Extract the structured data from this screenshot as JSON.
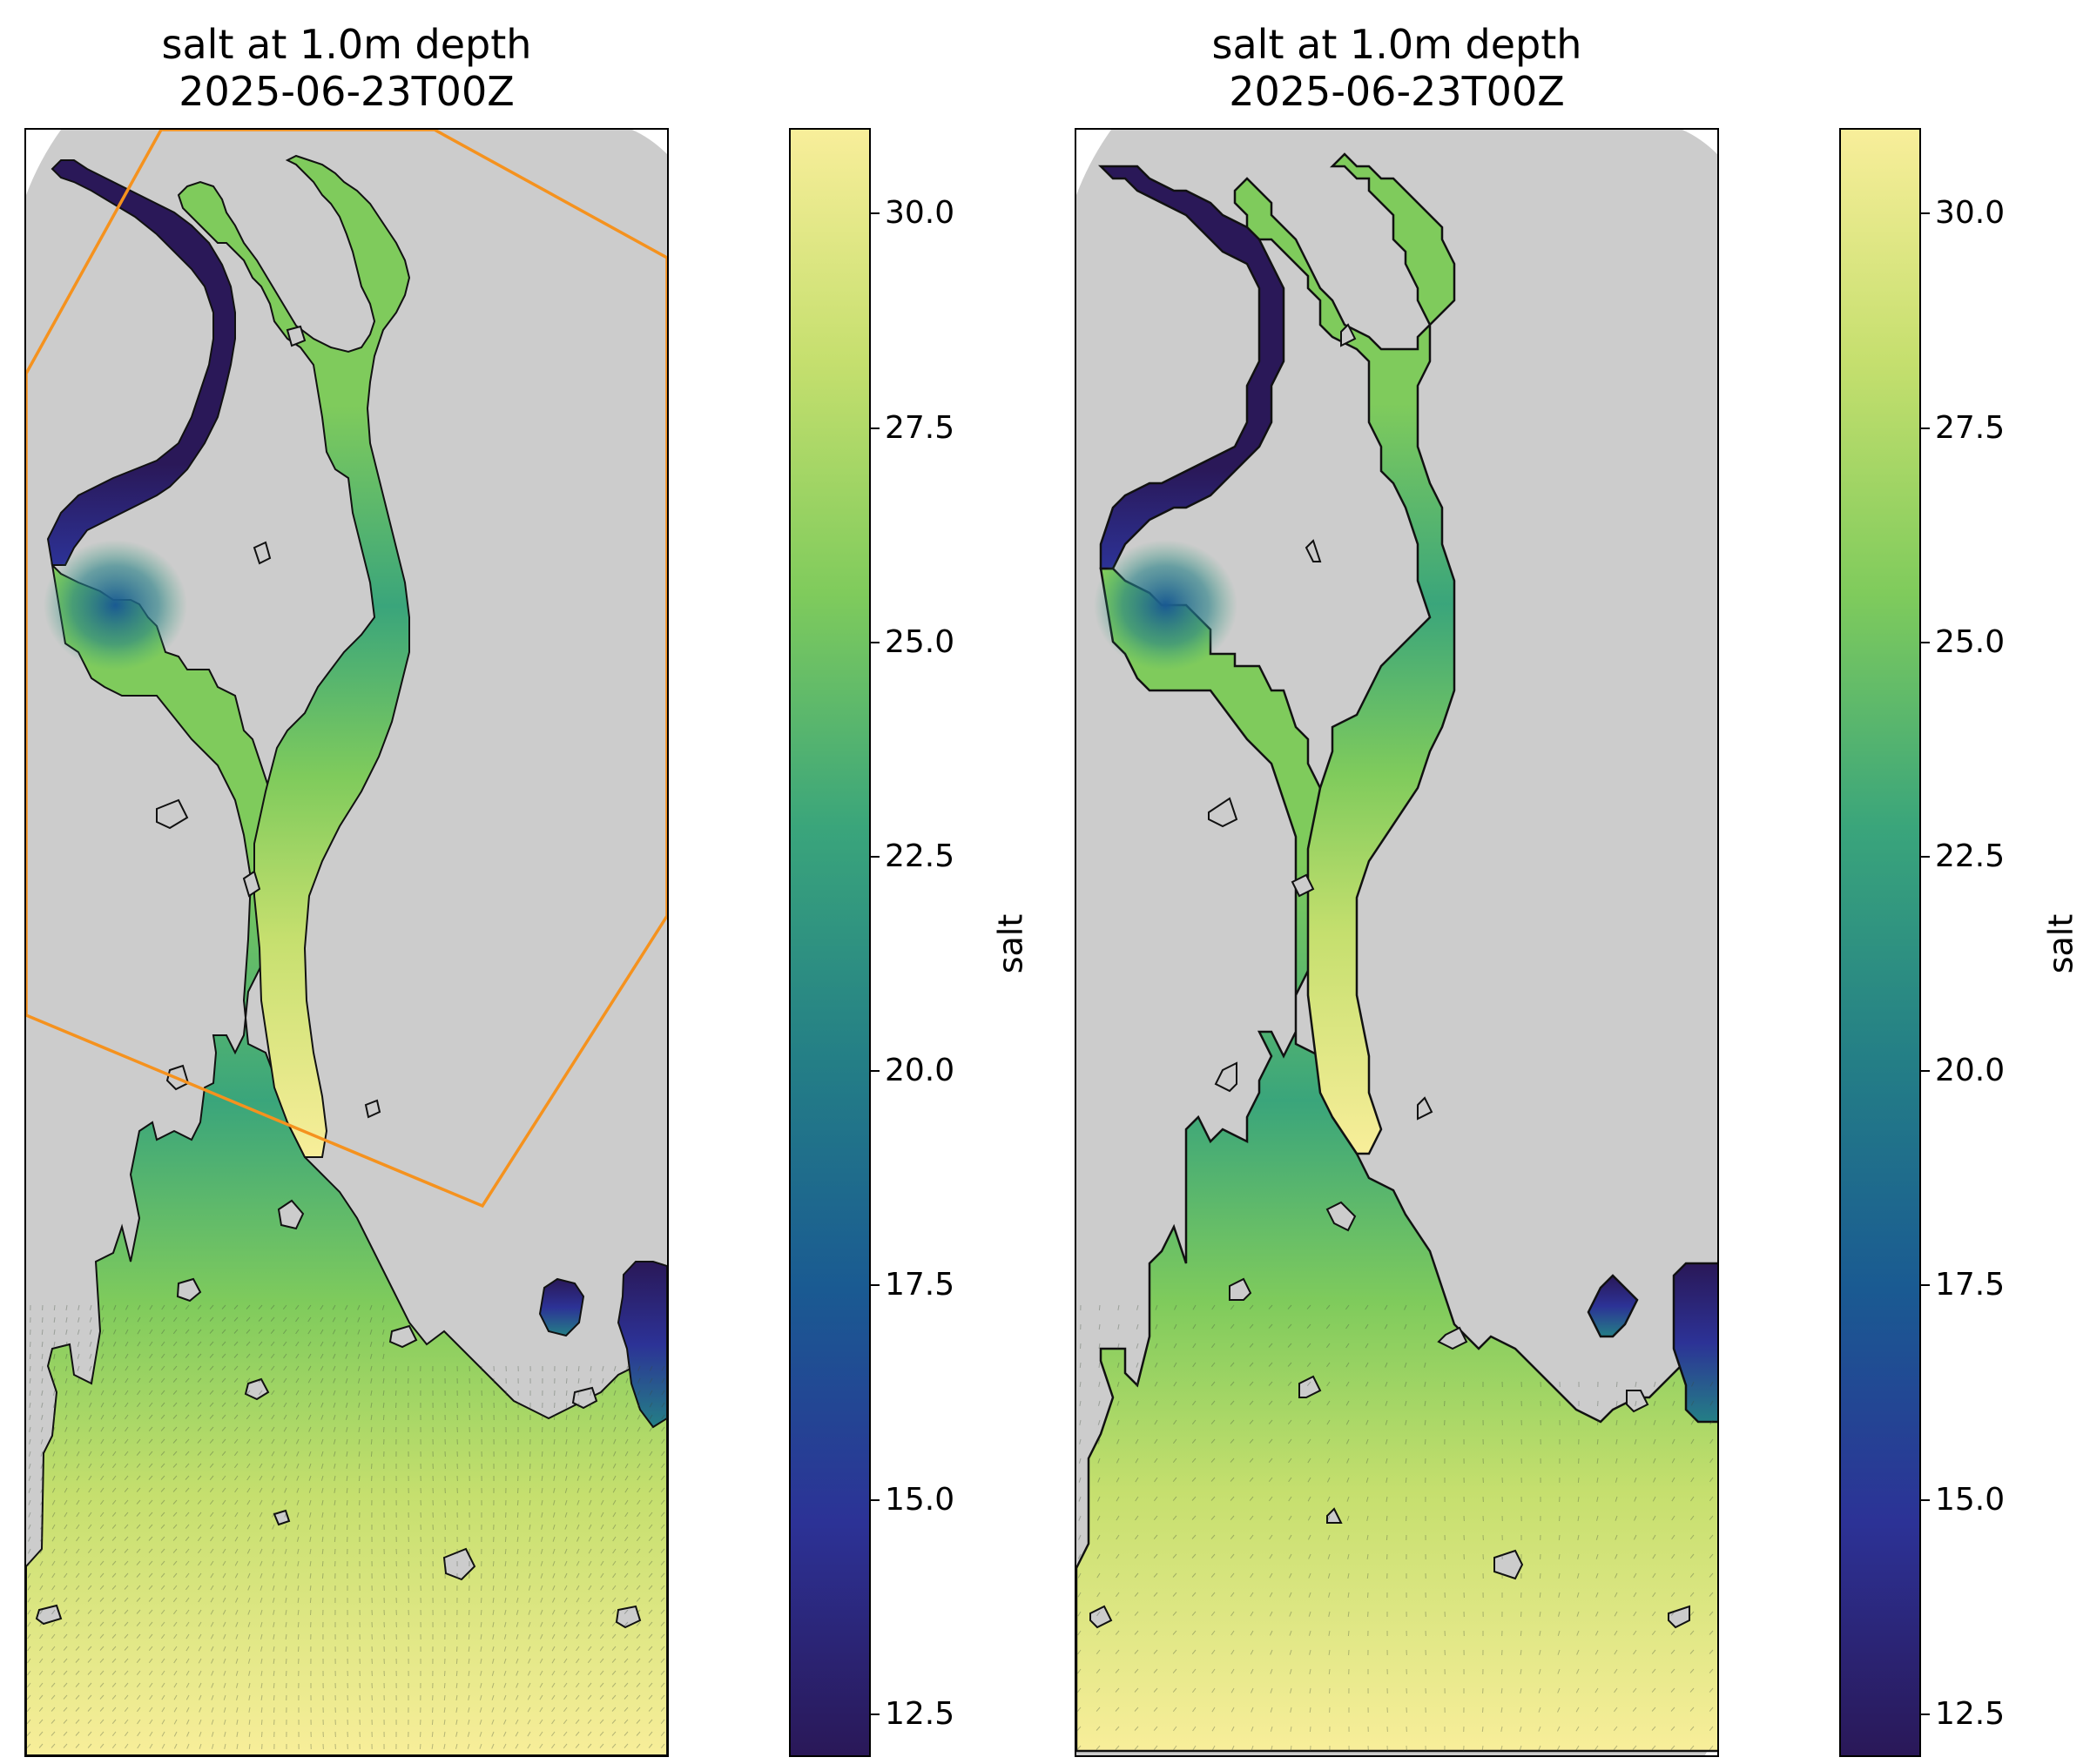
{
  "panels": [
    {
      "title_line1": "salt at 1.0m depth",
      "title_line2": "2025-06-23T00Z",
      "has_subdomain_box": true,
      "grid_style": "fine"
    },
    {
      "title_line1": "salt at 1.0m depth",
      "title_line2": "2025-06-23T00Z",
      "has_subdomain_box": false,
      "grid_style": "coarse"
    }
  ],
  "colorbar": {
    "label": "salt",
    "min": 12,
    "max": 31,
    "ticks": [
      "12.5",
      "15.0",
      "17.5",
      "20.0",
      "22.5",
      "25.0",
      "27.5",
      "30.0"
    ],
    "tick_values": [
      12.5,
      15.0,
      17.5,
      20.0,
      22.5,
      25.0,
      27.5,
      30.0
    ],
    "colormap": "haline",
    "stops": [
      "#2a1858",
      "#2c3296",
      "#1a5a92",
      "#247f86",
      "#3aa57b",
      "#7fcb5c",
      "#c5df6e",
      "#f8ee9a"
    ]
  },
  "colors": {
    "land": "#cccccc",
    "coast": "#111111",
    "subdomain_box": "#f5921e"
  }
}
